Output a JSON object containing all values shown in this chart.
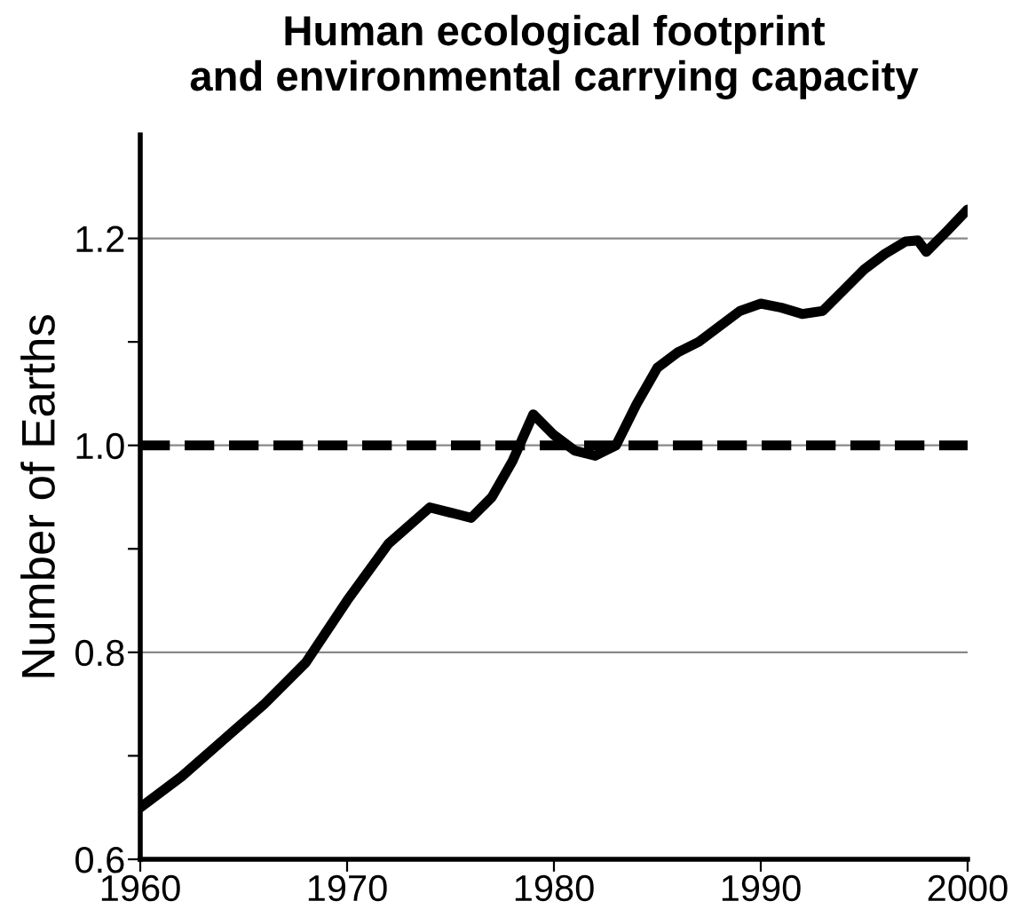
{
  "chart_data": {
    "type": "line",
    "title": "Human ecological footprint\nand environmental carrying capacity",
    "ylabel": "Number of Earths",
    "x": [
      1960,
      1962,
      1964,
      1966,
      1968,
      1970,
      1972,
      1974,
      1975,
      1976,
      1977,
      1978,
      1979,
      1980,
      1981,
      1982,
      1983,
      1984,
      1985,
      1986,
      1987,
      1988,
      1989,
      1990,
      1991,
      1992,
      1993,
      1994,
      1995,
      1996,
      1997,
      1997.6,
      1998,
      1999,
      2000
    ],
    "series": [
      {
        "color": "#000000",
        "values": [
          0.65,
          0.68,
          0.715,
          0.75,
          0.79,
          0.85,
          0.905,
          0.94,
          0.935,
          0.93,
          0.95,
          0.985,
          1.03,
          1.01,
          0.995,
          0.99,
          1.0,
          1.04,
          1.075,
          1.09,
          1.1,
          1.115,
          1.13,
          1.137,
          1.133,
          1.127,
          1.13,
          1.15,
          1.17,
          1.185,
          1.197,
          1.198,
          1.187,
          1.207,
          1.228
        ]
      }
    ],
    "xlim": [
      1960,
      2000
    ],
    "xticks": [
      1960,
      1970,
      1980,
      1990,
      2000
    ],
    "ylim": [
      0.6,
      1.3
    ],
    "yticks": [
      {
        "value": 0.6,
        "label": "0.6"
      },
      {
        "value": 0.7,
        "label": null
      },
      {
        "value": 0.8,
        "label": "0.8"
      },
      {
        "value": 0.9,
        "label": null
      },
      {
        "value": 1.0,
        "label": "1.0"
      },
      {
        "value": 1.1,
        "label": null
      },
      {
        "value": 1.2,
        "label": "1.2"
      }
    ],
    "grid": "y",
    "marker": "none",
    "line_style": "solid",
    "ref_lines": [
      {
        "axis": "y",
        "value": 1.0,
        "color": "#000000",
        "line_style": "dashed"
      }
    ]
  }
}
